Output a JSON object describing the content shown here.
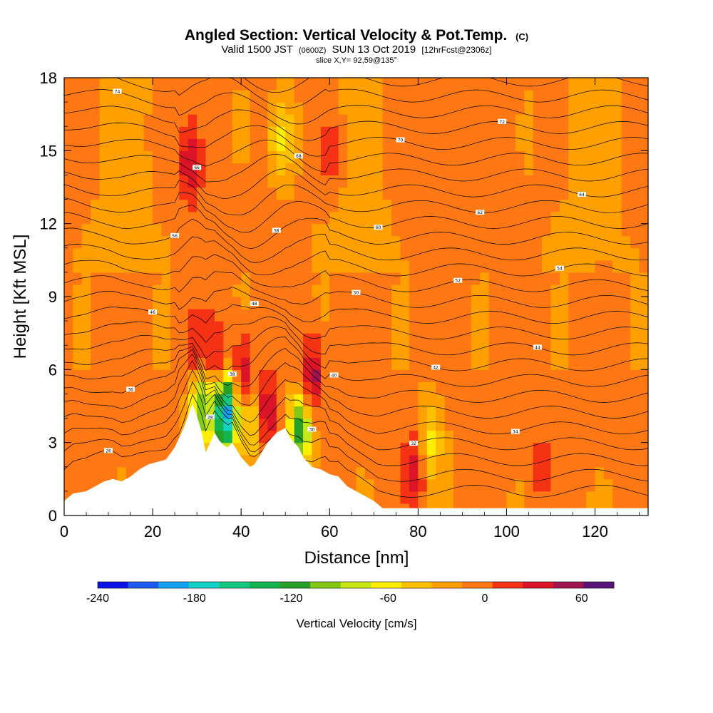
{
  "chart_data": {
    "type": "heatmap",
    "title": "Angled Section: Vertical Velocity & Pot.Temp.",
    "title_suffix": "(C)",
    "subtitle_parts": {
      "a": "Valid 1500 JST",
      "b": "(0600Z)",
      "c": "SUN 13 Oct 2019",
      "d": "[12hrFcst@2306z]"
    },
    "slice_note": "slice X,Y= 92,59@135°",
    "xlabel": "Distance [nm]",
    "ylabel": "Height [Kft MSL]",
    "xlim": [
      0,
      132
    ],
    "ylim": [
      0,
      18
    ],
    "x_ticks": [
      0,
      20,
      40,
      60,
      80,
      100,
      120
    ],
    "y_ticks": [
      0,
      3,
      6,
      9,
      12,
      15,
      18
    ],
    "colorbar": {
      "label": "Vertical Velocity [cm/s]",
      "ticks": [
        -240,
        -180,
        -120,
        -60,
        0,
        60
      ],
      "levels": [
        -240,
        -220,
        -200,
        -180,
        -160,
        -140,
        -120,
        -100,
        -80,
        -60,
        -40,
        -20,
        0,
        20,
        40,
        60,
        80
      ],
      "colors": [
        "#0a14e6",
        "#1e5af0",
        "#14a0f0",
        "#14d2c8",
        "#14c882",
        "#14b450",
        "#28a028",
        "#82c814",
        "#c8e614",
        "#ffee00",
        "#ffc000",
        "#ffa000",
        "#ff7814",
        "#f53214",
        "#dc1428",
        "#a01450",
        "#5a1478"
      ]
    },
    "terrain": [
      [
        0,
        0.6
      ],
      [
        2,
        0.9
      ],
      [
        5,
        1.0
      ],
      [
        7,
        1.2
      ],
      [
        9,
        1.4
      ],
      [
        11,
        1.5
      ],
      [
        13,
        1.4
      ],
      [
        15,
        1.6
      ],
      [
        17,
        1.9
      ],
      [
        19,
        2.1
      ],
      [
        21,
        2.2
      ],
      [
        23,
        2.3
      ],
      [
        25,
        2.8
      ],
      [
        27,
        3.6
      ],
      [
        29,
        4.6
      ],
      [
        30,
        4.1
      ],
      [
        31,
        3.5
      ],
      [
        32,
        2.6
      ],
      [
        33,
        3.0
      ],
      [
        34,
        3.4
      ],
      [
        35,
        3.1
      ],
      [
        36,
        2.9
      ],
      [
        37,
        2.8
      ],
      [
        38,
        3.0
      ],
      [
        39,
        2.7
      ],
      [
        40,
        2.4
      ],
      [
        41,
        2.2
      ],
      [
        42,
        2.0
      ],
      [
        43,
        2.1
      ],
      [
        44,
        2.4
      ],
      [
        45,
        2.7
      ],
      [
        46,
        3.0
      ],
      [
        48,
        3.4
      ],
      [
        50,
        3.6
      ],
      [
        51,
        3.2
      ],
      [
        52,
        3.0
      ],
      [
        53,
        2.8
      ],
      [
        54,
        2.4
      ],
      [
        55,
        2.2
      ],
      [
        56,
        2.0
      ],
      [
        58,
        1.9
      ],
      [
        60,
        1.7
      ],
      [
        62,
        1.6
      ],
      [
        63,
        1.4
      ],
      [
        64,
        1.2
      ],
      [
        66,
        1.0
      ],
      [
        68,
        0.8
      ],
      [
        70,
        0.6
      ],
      [
        72,
        0.3
      ],
      [
        74,
        0.3
      ],
      [
        132,
        0.3
      ]
    ],
    "updrafts": [
      {
        "x": 29.5,
        "z": 6.8,
        "w": 40
      },
      {
        "x": 34.5,
        "z": 6.4,
        "w": 50
      },
      {
        "x": 40.5,
        "z": 5.6,
        "w": 70
      },
      {
        "x": 45.2,
        "z": 4.2,
        "w": 80
      },
      {
        "x": 56,
        "z": 5.6,
        "w": 75
      },
      {
        "x": 28.5,
        "z": 14.5,
        "w": 60
      },
      {
        "x": 79.5,
        "z": 2.0,
        "w": 55
      },
      {
        "x": 60,
        "z": 15.0,
        "w": 30
      },
      {
        "x": 108,
        "z": 2.0,
        "w": 25
      }
    ],
    "downdrafts": [
      {
        "x": 31,
        "z": 4.6,
        "w": -110
      },
      {
        "x": 36.5,
        "z": 4.2,
        "w": -200
      },
      {
        "x": 42.8,
        "z": 4.0,
        "w": -90
      },
      {
        "x": 53.5,
        "z": 3.6,
        "w": -120
      },
      {
        "x": 82.5,
        "z": 3.0,
        "w": -60
      },
      {
        "x": 40,
        "z": 16.0,
        "w": -40
      },
      {
        "x": 49,
        "z": 15.5,
        "w": -50
      }
    ],
    "isentrope_labels": [
      "26",
      "28",
      "30",
      "32",
      "34",
      "36",
      "38",
      "40",
      "42",
      "44",
      "46",
      "48",
      "50",
      "52",
      "54",
      "56",
      "58",
      "60",
      "62",
      "64",
      "66",
      "68",
      "70",
      "72",
      "74",
      "76",
      "78"
    ]
  }
}
